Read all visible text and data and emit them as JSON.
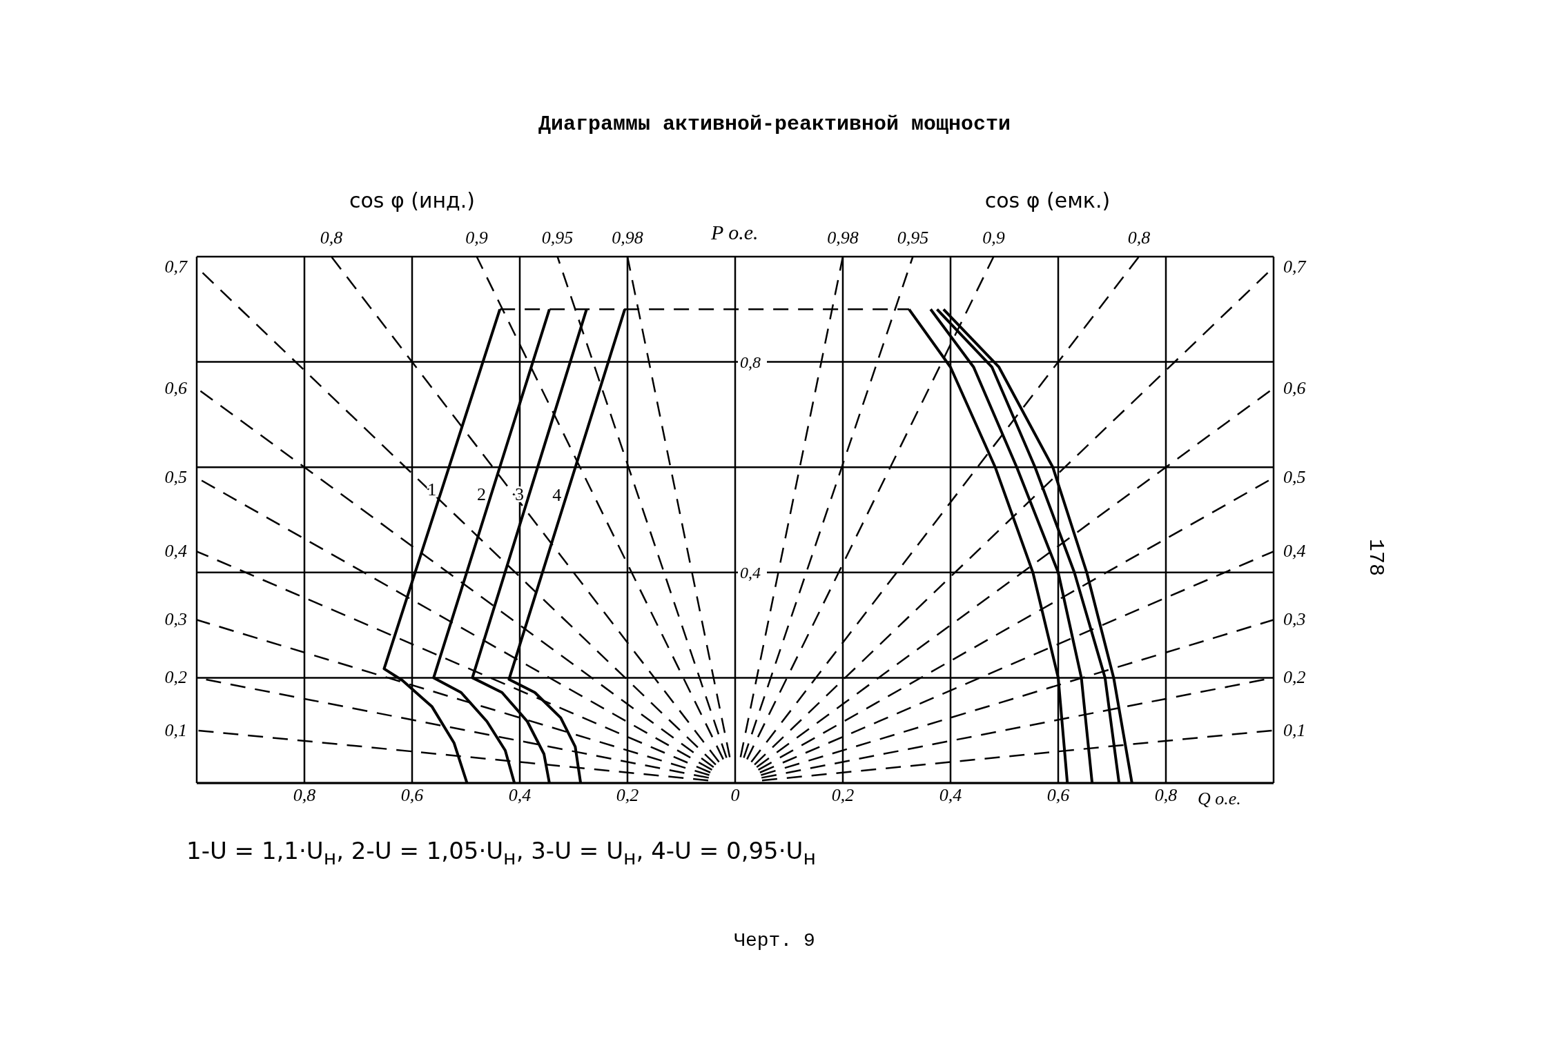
{
  "chart_data": {
    "type": "line",
    "title": "Диаграммы активной-реактивной мощности",
    "xlabel": "Q о.е.",
    "ylabel": "P о.е.",
    "xlim": [
      -1,
      1
    ],
    "ylim": [
      0,
      1
    ],
    "xticks": [
      {
        "value": -0.8,
        "label": "0,8"
      },
      {
        "value": -0.6,
        "label": "0,6"
      },
      {
        "value": -0.4,
        "label": "0,4"
      },
      {
        "value": -0.2,
        "label": "0,2"
      },
      {
        "value": 0,
        "label": "0"
      },
      {
        "value": 0.2,
        "label": "0,2"
      },
      {
        "value": 0.4,
        "label": "0,4"
      },
      {
        "value": 0.6,
        "label": "0,6"
      },
      {
        "value": 0.8,
        "label": "0,8"
      }
    ],
    "yticks": [
      {
        "value": 0.2,
        "label": null
      },
      {
        "value": 0.4,
        "label": "0,4"
      },
      {
        "value": 0.6,
        "label": null
      },
      {
        "value": 0.8,
        "label": "0,8"
      }
    ],
    "grid": true,
    "series": [
      {
        "name": "1",
        "color": "#000000",
        "x": [
          -0.437,
          -0.652,
          -0.618,
          -0.563,
          -0.522,
          -0.498
        ],
        "values": [
          0.9,
          0.217,
          0.195,
          0.145,
          0.076,
          0
        ]
      },
      {
        "name": "2",
        "color": "#000000",
        "x": [
          -0.345,
          -0.56,
          -0.509,
          -0.461,
          -0.427,
          -0.41
        ],
        "values": [
          0.9,
          0.2,
          0.172,
          0.117,
          0.062,
          0
        ]
      },
      {
        "name": "3",
        "color": "#000000",
        "x": [
          -0.276,
          -0.488,
          -0.433,
          -0.386,
          -0.355,
          -0.345
        ],
        "values": [
          0.9,
          0.2,
          0.172,
          0.117,
          0.055,
          0
        ]
      },
      {
        "name": "4",
        "color": "#000000",
        "x": [
          -0.205,
          -0.42,
          -0.372,
          -0.324,
          -0.297,
          -0.287
        ],
        "values": [
          0.9,
          0.197,
          0.172,
          0.124,
          0.069,
          0
        ]
      },
      {
        "color": "#000000",
        "x": [
          0.323,
          0.4,
          0.483,
          0.553,
          0.6,
          0.617
        ],
        "values": [
          0.9,
          0.79,
          0.6,
          0.4,
          0.2,
          0
        ]
      },
      {
        "color": "#000000",
        "x": [
          0.363,
          0.443,
          0.523,
          0.6,
          0.643,
          0.663
        ],
        "values": [
          0.9,
          0.79,
          0.6,
          0.4,
          0.2,
          0
        ]
      },
      {
        "color": "#000000",
        "x": [
          0.375,
          0.477,
          0.557,
          0.63,
          0.687,
          0.713
        ],
        "values": [
          0.9,
          0.79,
          0.6,
          0.4,
          0.2,
          0
        ]
      },
      {
        "color": "#000000",
        "x": [
          0.387,
          0.49,
          0.59,
          0.653,
          0.703,
          0.737
        ],
        "values": [
          0.9,
          0.79,
          0.6,
          0.4,
          0.2,
          0
        ]
      },
      {
        "color": "#000000",
        "line_style": "dashed",
        "x": [
          -0.437,
          0.323
        ],
        "values": [
          0.9,
          0.9
        ]
      },
      {
        "color": "#000000",
        "line_style": "dashed",
        "x": [
          -0.01,
          -0.2
        ],
        "values": [
          0.049,
          1
        ]
      },
      {
        "color": "#000000",
        "line_style": "dashed",
        "x": [
          -0.016,
          -0.33
        ],
        "values": [
          0.048,
          1
        ]
      },
      {
        "color": "#000000",
        "line_style": "dashed",
        "x": [
          -0.022,
          -0.48
        ],
        "values": [
          0.045,
          1
        ]
      },
      {
        "color": "#000000",
        "line_style": "dashed",
        "x": [
          -0.03,
          -0.75
        ],
        "values": [
          0.04,
          1
        ]
      },
      {
        "color": "#000000",
        "line_style": "dashed",
        "x": [
          -0.036,
          -1
        ],
        "values": [
          0.035,
          0.98
        ]
      },
      {
        "color": "#000000",
        "line_style": "dashed",
        "x": [
          -0.04,
          -1
        ],
        "values": [
          0.03,
          0.75
        ]
      },
      {
        "color": "#000000",
        "line_style": "dashed",
        "x": [
          -0.043,
          -1
        ],
        "values": [
          0.025,
          0.58
        ]
      },
      {
        "color": "#000000",
        "line_style": "dashed",
        "x": [
          -0.046,
          -1
        ],
        "values": [
          0.02,
          0.44
        ]
      },
      {
        "color": "#000000",
        "line_style": "dashed",
        "x": [
          -0.048,
          -1
        ],
        "values": [
          0.015,
          0.31
        ]
      },
      {
        "color": "#000000",
        "line_style": "dashed",
        "x": [
          -0.049,
          -1
        ],
        "values": [
          0.01,
          0.2
        ]
      },
      {
        "color": "#000000",
        "line_style": "dashed",
        "x": [
          -0.05,
          -1
        ],
        "values": [
          0.005,
          0.1
        ]
      },
      {
        "color": "#000000",
        "line_style": "dashed",
        "x": [
          0.01,
          0.2
        ],
        "values": [
          0.049,
          1
        ]
      },
      {
        "color": "#000000",
        "line_style": "dashed",
        "x": [
          0.016,
          0.33
        ],
        "values": [
          0.048,
          1
        ]
      },
      {
        "color": "#000000",
        "line_style": "dashed",
        "x": [
          0.022,
          0.48
        ],
        "values": [
          0.045,
          1
        ]
      },
      {
        "color": "#000000",
        "line_style": "dashed",
        "x": [
          0.03,
          0.75
        ],
        "values": [
          0.04,
          1
        ]
      },
      {
        "color": "#000000",
        "line_style": "dashed",
        "x": [
          0.036,
          1
        ],
        "values": [
          0.035,
          0.98
        ]
      },
      {
        "color": "#000000",
        "line_style": "dashed",
        "x": [
          0.04,
          1
        ],
        "values": [
          0.03,
          0.75
        ]
      },
      {
        "color": "#000000",
        "line_style": "dashed",
        "x": [
          0.043,
          1
        ],
        "values": [
          0.025,
          0.58
        ]
      },
      {
        "color": "#000000",
        "line_style": "dashed",
        "x": [
          0.046,
          1
        ],
        "values": [
          0.02,
          0.44
        ]
      },
      {
        "color": "#000000",
        "line_style": "dashed",
        "x": [
          0.048,
          1
        ],
        "values": [
          0.015,
          0.31
        ]
      },
      {
        "color": "#000000",
        "line_style": "dashed",
        "x": [
          0.049,
          1
        ],
        "values": [
          0.01,
          0.2
        ]
      },
      {
        "color": "#000000",
        "line_style": "dashed",
        "x": [
          0.05,
          1
        ],
        "values": [
          0.005,
          0.1
        ]
      }
    ],
    "annotations": [
      "cos φ (инд.)",
      "cos φ (емк.)",
      "1-U = 1,1·U$_{н}$,  2-U = 1,05·U$_{н}$,  3-U = U$_{н}$,  4-U = 0,95·U$_{н}$",
      "Черт. 9",
      "178",
      {
        "text": "0,98",
        "x": -0.2,
        "y": 1
      },
      {
        "text": "0,95",
        "x": -0.33,
        "y": 1
      },
      {
        "text": "0,9",
        "x": -0.48,
        "y": 1
      },
      {
        "text": "0,8",
        "x": -0.75,
        "y": 1
      },
      {
        "text": "0,7",
        "x": -1,
        "y": 0.98
      },
      {
        "text": "0,6",
        "x": -1,
        "y": 0.75
      },
      {
        "text": "0,5",
        "x": -1,
        "y": 0.58
      },
      {
        "text": "0,4",
        "x": -1,
        "y": 0.44
      },
      {
        "text": "0,3",
        "x": -1,
        "y": 0.31
      },
      {
        "text": "0,2",
        "x": -1,
        "y": 0.2
      },
      {
        "text": "0,1",
        "x": -1,
        "y": 0.1
      },
      {
        "text": "0,98",
        "x": 0.2,
        "y": 1
      },
      {
        "text": "0,95",
        "x": 0.33,
        "y": 1
      },
      {
        "text": "0,9",
        "x": 0.48,
        "y": 1
      },
      {
        "text": "0,8",
        "x": 0.75,
        "y": 1
      },
      {
        "text": "0,7",
        "x": 1,
        "y": 0.98
      },
      {
        "text": "0,6",
        "x": 1,
        "y": 0.75
      },
      {
        "text": "0,5",
        "x": 1,
        "y": 0.58
      },
      {
        "text": "0,4",
        "x": 1,
        "y": 0.44
      },
      {
        "text": "0,3",
        "x": 1,
        "y": 0.31
      },
      {
        "text": "0,2",
        "x": 1,
        "y": 0.2
      },
      {
        "text": "0,1",
        "x": 1,
        "y": 0.1
      }
    ]
  }
}
